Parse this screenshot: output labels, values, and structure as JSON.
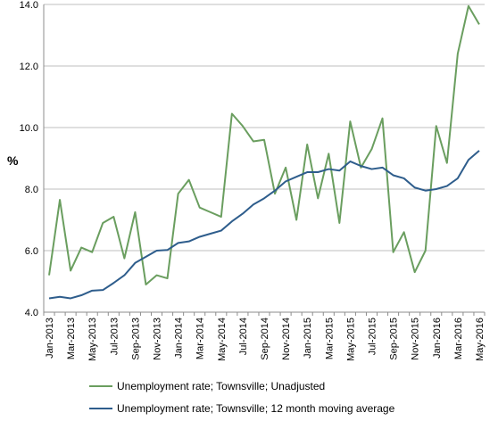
{
  "chart_data": {
    "type": "line",
    "title": "",
    "xlabel": "",
    "ylabel": "%",
    "ylim": [
      4.0,
      14.0
    ],
    "yticks": [
      "4.0",
      "6.0",
      "8.0",
      "10.0",
      "12.0",
      "14.0"
    ],
    "grid": "horizontal",
    "legend_position": "bottom",
    "x": [
      "Jan-2013",
      "Feb-2013",
      "Mar-2013",
      "Apr-2013",
      "May-2013",
      "Jun-2013",
      "Jul-2013",
      "Aug-2013",
      "Sep-2013",
      "Oct-2013",
      "Nov-2013",
      "Dec-2013",
      "Jan-2014",
      "Feb-2014",
      "Mar-2014",
      "Apr-2014",
      "May-2014",
      "Jun-2014",
      "Jul-2014",
      "Aug-2014",
      "Sep-2014",
      "Oct-2014",
      "Nov-2014",
      "Dec-2014",
      "Jan-2015",
      "Feb-2015",
      "Mar-2015",
      "Apr-2015",
      "May-2015",
      "Jun-2015",
      "Jul-2015",
      "Aug-2015",
      "Sep-2015",
      "Oct-2015",
      "Nov-2015",
      "Dec-2015",
      "Jan-2016",
      "Feb-2016",
      "Mar-2016",
      "Apr-2016",
      "May-2016"
    ],
    "xtick_labels": [
      "Jan-2013",
      "Mar-2013",
      "May-2013",
      "Jul-2013",
      "Sep-2013",
      "Nov-2013",
      "Jan-2014",
      "Mar-2014",
      "May-2014",
      "Jul-2014",
      "Sep-2014",
      "Nov-2014",
      "Jan-2015",
      "Mar-2015",
      "May-2015",
      "Jul-2015",
      "Sep-2015",
      "Nov-2015",
      "Jan-2016",
      "Mar-2016",
      "May-2016"
    ],
    "series": [
      {
        "name": "Unemployment rate; Townsville; Unadjusted",
        "color": "#6a9e5f",
        "values": [
          5.2,
          7.65,
          5.35,
          6.1,
          5.95,
          6.9,
          7.1,
          5.75,
          7.25,
          4.9,
          5.2,
          5.1,
          7.85,
          8.3,
          7.4,
          7.25,
          7.1,
          10.45,
          10.05,
          9.55,
          9.6,
          7.85,
          8.7,
          7.0,
          9.45,
          7.7,
          9.15,
          6.9,
          10.2,
          8.7,
          9.3,
          10.3,
          5.95,
          6.6,
          5.3,
          6.0,
          10.05,
          8.85,
          12.4,
          13.95,
          13.35
        ]
      },
      {
        "name": "Unemployment rate; Townsville; 12 month moving average",
        "color": "#2e5d8c",
        "values": [
          4.45,
          4.5,
          4.45,
          4.55,
          4.7,
          4.72,
          4.95,
          5.2,
          5.6,
          5.8,
          6.0,
          6.02,
          6.25,
          6.3,
          6.45,
          6.55,
          6.65,
          6.95,
          7.2,
          7.5,
          7.7,
          7.95,
          8.25,
          8.4,
          8.55,
          8.55,
          8.65,
          8.6,
          8.9,
          8.75,
          8.65,
          8.7,
          8.45,
          8.35,
          8.05,
          7.95,
          8.0,
          8.1,
          8.35,
          8.95,
          9.25
        ]
      }
    ]
  }
}
